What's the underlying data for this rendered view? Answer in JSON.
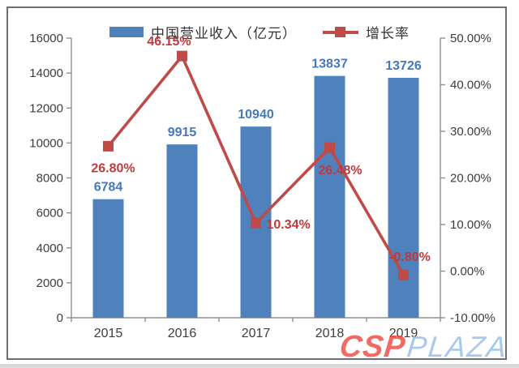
{
  "legend": {
    "items": [
      {
        "label": "中国营业收入（亿元）",
        "type": "bar",
        "color": "#4F81BD"
      },
      {
        "label": "增长率",
        "type": "line",
        "color": "#BE4B48"
      }
    ]
  },
  "watermark": {
    "part1": "CSP",
    "part2": "PLAZA",
    "color1": "#EE4B43",
    "color2": "#A7C9EC"
  },
  "chart_data": {
    "type": "bar+line",
    "title": "",
    "categories": [
      "2015",
      "2016",
      "2017",
      "2018",
      "2019"
    ],
    "series": [
      {
        "name": "中国营业收入（亿元）",
        "type": "bar",
        "axis": "left",
        "color": "#4F81BD",
        "label_color": "#4679BA",
        "values": [
          6784,
          9915,
          10940,
          13837,
          13726
        ],
        "value_labels": [
          "6784",
          "9915",
          "10940",
          "13837",
          "13726"
        ]
      },
      {
        "name": "增长率",
        "type": "line",
        "axis": "right",
        "color": "#BE4B48",
        "label_color": "#C0393B",
        "marker": "square",
        "values": [
          26.8,
          46.15,
          10.34,
          26.48,
          -0.8
        ],
        "value_labels": [
          "26.80%",
          "46.15%",
          "10.34%",
          "26.48%",
          "-0.80%"
        ],
        "label_place": [
          "below-left",
          "above-left",
          "right",
          "below",
          "above"
        ]
      }
    ],
    "left_axis": {
      "range": [
        0,
        16000
      ],
      "ticks": [
        "16000",
        "14000",
        "12000",
        "10000",
        "8000",
        "6000",
        "4000",
        "2000",
        "0"
      ]
    },
    "right_axis": {
      "range": [
        -10,
        50
      ],
      "ticks": [
        "50.00%",
        "40.00%",
        "30.00%",
        "20.00%",
        "10.00%",
        "0.00%",
        "-10.00%"
      ]
    },
    "grid": false,
    "legend_position": "top"
  }
}
